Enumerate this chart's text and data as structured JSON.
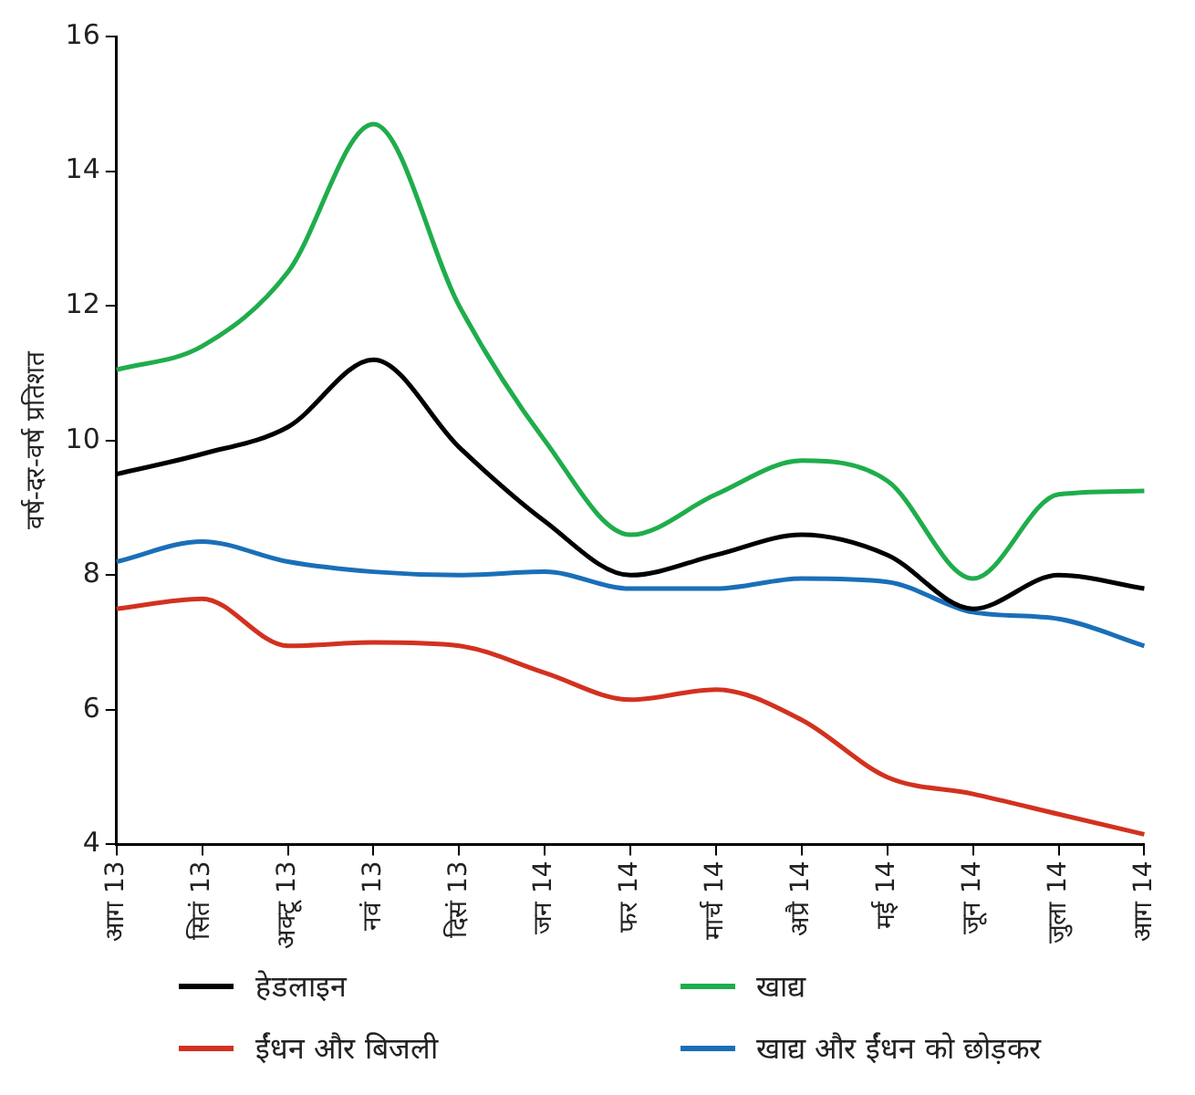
{
  "chart_data": {
    "type": "line",
    "ylabel": "वर्ष-दर-वर्ष प्रतिशत",
    "categories": [
      "आग 13",
      "सितं 13",
      "अक्टू 13",
      "नवं 13",
      "दिसं 13",
      "जन 14",
      "फर 14",
      "मार्च 14",
      "अप्रै 14",
      "मई 14",
      "जून 14",
      "जुला 14",
      "आग 14"
    ],
    "series": [
      {
        "name": "हेडलाइन",
        "color": "#000000",
        "values": [
          9.5,
          9.8,
          10.2,
          11.2,
          9.9,
          8.8,
          8.0,
          8.3,
          8.6,
          8.3,
          7.5,
          8.0,
          7.8
        ]
      },
      {
        "name": "खाद्य",
        "color": "#1fad4b",
        "values": [
          11.05,
          11.4,
          12.5,
          14.7,
          12.0,
          10.0,
          8.6,
          9.2,
          9.7,
          9.4,
          7.95,
          9.2,
          9.25
        ]
      },
      {
        "name": "ईंधन और बिजली",
        "color": "#d3311f",
        "values": [
          7.5,
          7.65,
          6.95,
          7.0,
          6.95,
          6.55,
          6.15,
          6.3,
          5.85,
          5.0,
          4.75,
          4.45,
          4.15
        ]
      },
      {
        "name": "खाद्य और ईंधन को छोड़कर",
        "color": "#1a6fb8",
        "values": [
          8.2,
          8.5,
          8.2,
          8.05,
          8.0,
          8.05,
          7.8,
          7.8,
          7.95,
          7.9,
          7.45,
          7.35,
          6.95
        ]
      }
    ],
    "ylim": [
      4,
      16
    ],
    "yticks": [
      4,
      6,
      8,
      10,
      12,
      14,
      16
    ],
    "grid": false,
    "legend": "bottom",
    "marker": "none",
    "line_style": "solid"
  }
}
